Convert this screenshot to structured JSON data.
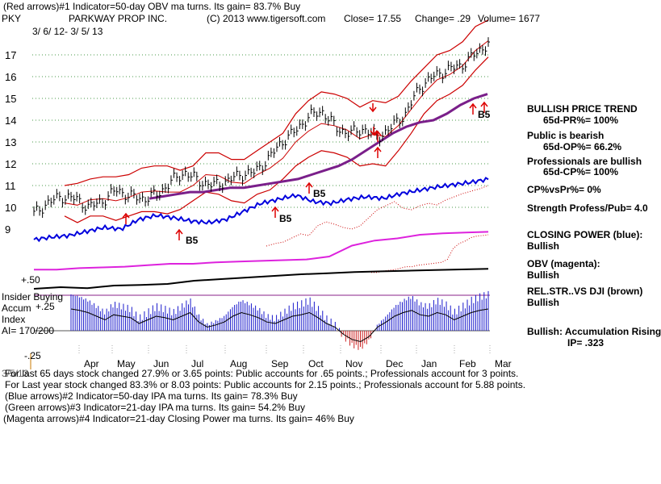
{
  "header": {
    "line1": "(Red arrows)#1 Indicator=50-day OBV ma turns. Its gain= 83.7% Buy",
    "symbol": "PKY",
    "company": "PARKWAY PROP INC.",
    "copyright": "(C) 2013 www.tigersoft.com",
    "close": "Close=  17.55",
    "change": "Change= .29",
    "volume": "Volume= 1677",
    "date_range": "3/ 6/ 12- 3/ 5/ 13"
  },
  "right_panel": {
    "trend_title": "BULLISH PRICE TREND",
    "trend_pr": "65d-PR%= 100%",
    "public": "Public is bearish",
    "public_op": "65d-OP%= 66.2%",
    "professionals": "Professionals are bullish",
    "professionals_cp": "65d-CP%= 100%",
    "cp_vs_pr": "CP%vsPr%=  0%",
    "strength": "Strength Profess/Pub= 4.0",
    "closing_power_label": "CLOSING POWER (blue):",
    "closing_power_value": "Bullish",
    "obv_label": "OBV (magenta):",
    "obv_value": "Bullish",
    "relstr_label": "REL.STR..VS DJI (brown)",
    "relstr_value": "Bullish",
    "accum_label": "Bullish: Accumulation Rising",
    "ip": "IP=  .323"
  },
  "left_panel": {
    "insider": "Insider Buying",
    "accum": "Accum",
    "index": "Index",
    "ai": "AI= 170/200",
    "plus50": "+.50",
    "plus25": "+.25",
    "minus25": "-.25"
  },
  "footer": {
    "date": "3/5/13",
    "line1": "For last 65 days stock changed  27.9% or  3.65 points:  Public accounts for  .65 points.;  Professionals account for  3 points.",
    "line2": "For Last year stock changed  83.3% or  8.03 points:  Public accounts for  2.15 points.;  Professionals account for  5.88 points.",
    "line3": "(Blue arrows)#2 Indicator=50-day IPA ma turns. Its gain= 78.3% Buy",
    "line4": "(Green arrows)#3 Indicator=21-day IPA ma turns. Its gain= 54.2% Buy",
    "line5": "(Magenta arrows)#4 Indicator=21-day Closing Power ma turns. Its gain= 46% Buy"
  },
  "chart_data": {
    "type": "line",
    "title": "PARKWAY PROP INC. (PKY)",
    "x_tick_labels": [
      "Apr",
      "May",
      "Jun",
      "Jul",
      "Aug",
      "Sep",
      "Oct",
      "Nov",
      "Dec",
      "Jan",
      "Feb",
      "Mar"
    ],
    "y_tick_labels": [
      "9",
      "10",
      "11",
      "12",
      "13",
      "14",
      "15",
      "16",
      "17"
    ],
    "ylim": [
      9,
      18
    ],
    "price_close": [
      9.7,
      10.2,
      10.5,
      10.4,
      10.0,
      10.3,
      10.8,
      10.5,
      10.4,
      10.6,
      11.2,
      11.6,
      11.2,
      11.0,
      11.2,
      11.5,
      11.6,
      12.2,
      13.0,
      13.5,
      14.2,
      14.4,
      13.6,
      13.4,
      13.6,
      13.2,
      13.7,
      14.3,
      15.5,
      16.0,
      16.3,
      16.5,
      17.0,
      17.55
    ],
    "upper_band": [
      11.0,
      11.1,
      11.3,
      11.4,
      11.4,
      11.5,
      11.8,
      11.9,
      11.9,
      11.7,
      11.9,
      12.5,
      12.5,
      12.2,
      12.2,
      12.6,
      13.0,
      13.4,
      14.3,
      14.9,
      15.3,
      15.2,
      15.0,
      14.6,
      14.9,
      14.8,
      15.1,
      15.8,
      16.4,
      17.0,
      17.2,
      17.6,
      18.3,
      18.6
    ],
    "lower_band": [
      9.6,
      9.3,
      9.6,
      9.6,
      9.4,
      9.6,
      9.8,
      9.8,
      9.7,
      9.9,
      10.3,
      10.7,
      10.6,
      10.3,
      10.2,
      10.6,
      10.8,
      11.3,
      11.9,
      12.3,
      12.6,
      12.5,
      12.3,
      11.9,
      12.0,
      11.9,
      12.6,
      13.4,
      14.3,
      14.9,
      15.2,
      15.6,
      16.3,
      16.9
    ],
    "ma_50day": [
      10.4,
      10.5,
      10.6,
      10.7,
      10.7,
      10.8,
      10.9,
      10.9,
      11.0,
      11.1,
      11.2,
      11.3,
      11.5,
      11.7,
      11.9,
      12.2,
      12.6,
      13.0,
      13.4,
      13.7,
      13.9,
      14.0,
      14.3,
      14.7,
      15.0,
      15.2
    ],
    "closing_power_blue": [
      0.25,
      0.28,
      0.3,
      0.35,
      0.4,
      0.38,
      0.5,
      0.55,
      0.52,
      0.48,
      0.46,
      0.5,
      0.6,
      0.7,
      0.75,
      0.8,
      0.72,
      0.7,
      0.75,
      0.78,
      0.76,
      0.82,
      0.86,
      0.9,
      0.93,
      0.96,
      1.0
    ],
    "obv_magenta": [
      0.12,
      0.12,
      0.14,
      0.15,
      0.16,
      0.18,
      0.2,
      0.2,
      0.22,
      0.23,
      0.24,
      0.25,
      0.26,
      0.3,
      0.45,
      0.52,
      0.55,
      0.6,
      0.62,
      0.63,
      0.64
    ],
    "relstr_black": [
      0.1,
      0.15,
      0.12,
      0.2,
      0.22,
      0.25,
      0.35,
      0.4,
      0.45,
      0.5,
      0.55,
      0.58,
      0.62,
      0.64,
      0.66,
      0.68,
      0.7,
      0.72
    ],
    "accum_index_ylim": [
      -0.25,
      0.5
    ],
    "accum_index": [
      0.3,
      0.28,
      0.25,
      0.2,
      0.15,
      0.22,
      0.2,
      0.18,
      0.1,
      0.15,
      0.2,
      0.18,
      0.15,
      0.2,
      0.25,
      0.12,
      0.05,
      0.08,
      0.12,
      0.2,
      0.25,
      0.22,
      0.18,
      0.12,
      0.1,
      0.15,
      0.2,
      0.22,
      0.25,
      0.18,
      0.1,
      0.05,
      -0.05,
      -0.12,
      -0.15,
      -0.08,
      0.05,
      0.12,
      0.2,
      0.25,
      0.28,
      0.22,
      0.2,
      0.25,
      0.22,
      0.15,
      0.2,
      0.25,
      0.28,
      0.3
    ],
    "annotations": [
      "B5",
      "B5",
      "B5",
      "B5"
    ]
  }
}
